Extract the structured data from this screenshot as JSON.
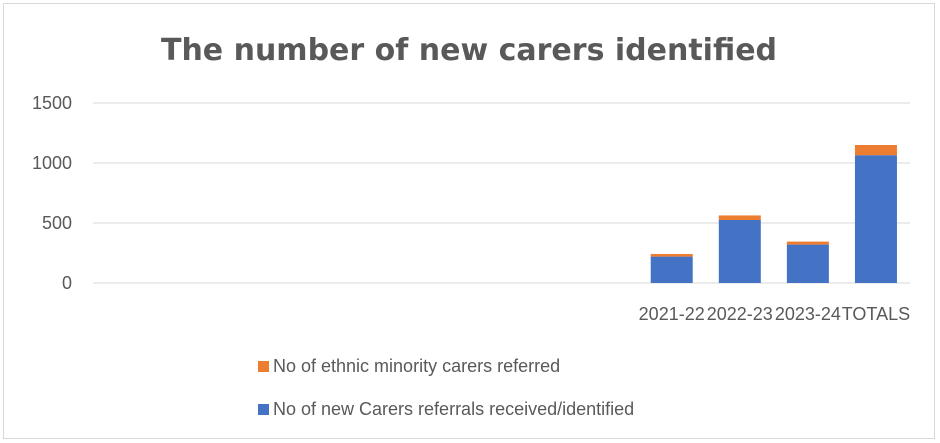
{
  "chart_data": {
    "type": "bar",
    "stacked": true,
    "title": "The number of new carers identified",
    "categories": [
      "",
      "",
      "",
      "",
      "",
      "",
      "",
      "",
      "2021-22",
      "2022-23",
      "2023-24",
      "TOTALS"
    ],
    "series": [
      {
        "name": "No of new Carers referrals received/identified",
        "color": "#4472c4",
        "values": [
          0,
          0,
          0,
          0,
          0,
          0,
          0,
          0,
          220,
          525,
          320,
          1065
        ]
      },
      {
        "name": "No of ethnic minority carers referred",
        "color": "#ed7d31",
        "values": [
          0,
          0,
          0,
          0,
          0,
          0,
          0,
          0,
          22,
          38,
          25,
          85
        ]
      }
    ],
    "yticks": [
      0,
      500,
      1000,
      1500
    ],
    "ylim": [
      0,
      1500
    ],
    "grid": true,
    "legend_position": "bottom"
  }
}
